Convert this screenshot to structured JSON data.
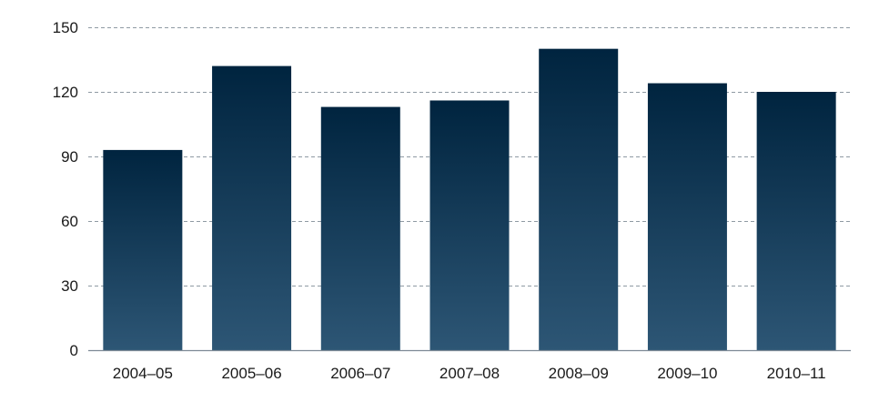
{
  "chart_data": {
    "type": "bar",
    "title": "",
    "xlabel": "",
    "ylabel": "",
    "categories": [
      "2004–05",
      "2005–06",
      "2006–07",
      "2007–08",
      "2008–09",
      "2009–10",
      "2010–11"
    ],
    "values": [
      93,
      132,
      113,
      116,
      140,
      124,
      120
    ],
    "ylim": [
      0,
      150
    ],
    "yticks": [
      0,
      30,
      60,
      90,
      120,
      150
    ],
    "grid": true,
    "legend": "none",
    "colors": {
      "bar_top": "#00243f",
      "bar_bottom": "#2d5675",
      "grid": "#8f9aa3",
      "axis": "#7d8a96",
      "text": "#1a1a1a"
    }
  }
}
